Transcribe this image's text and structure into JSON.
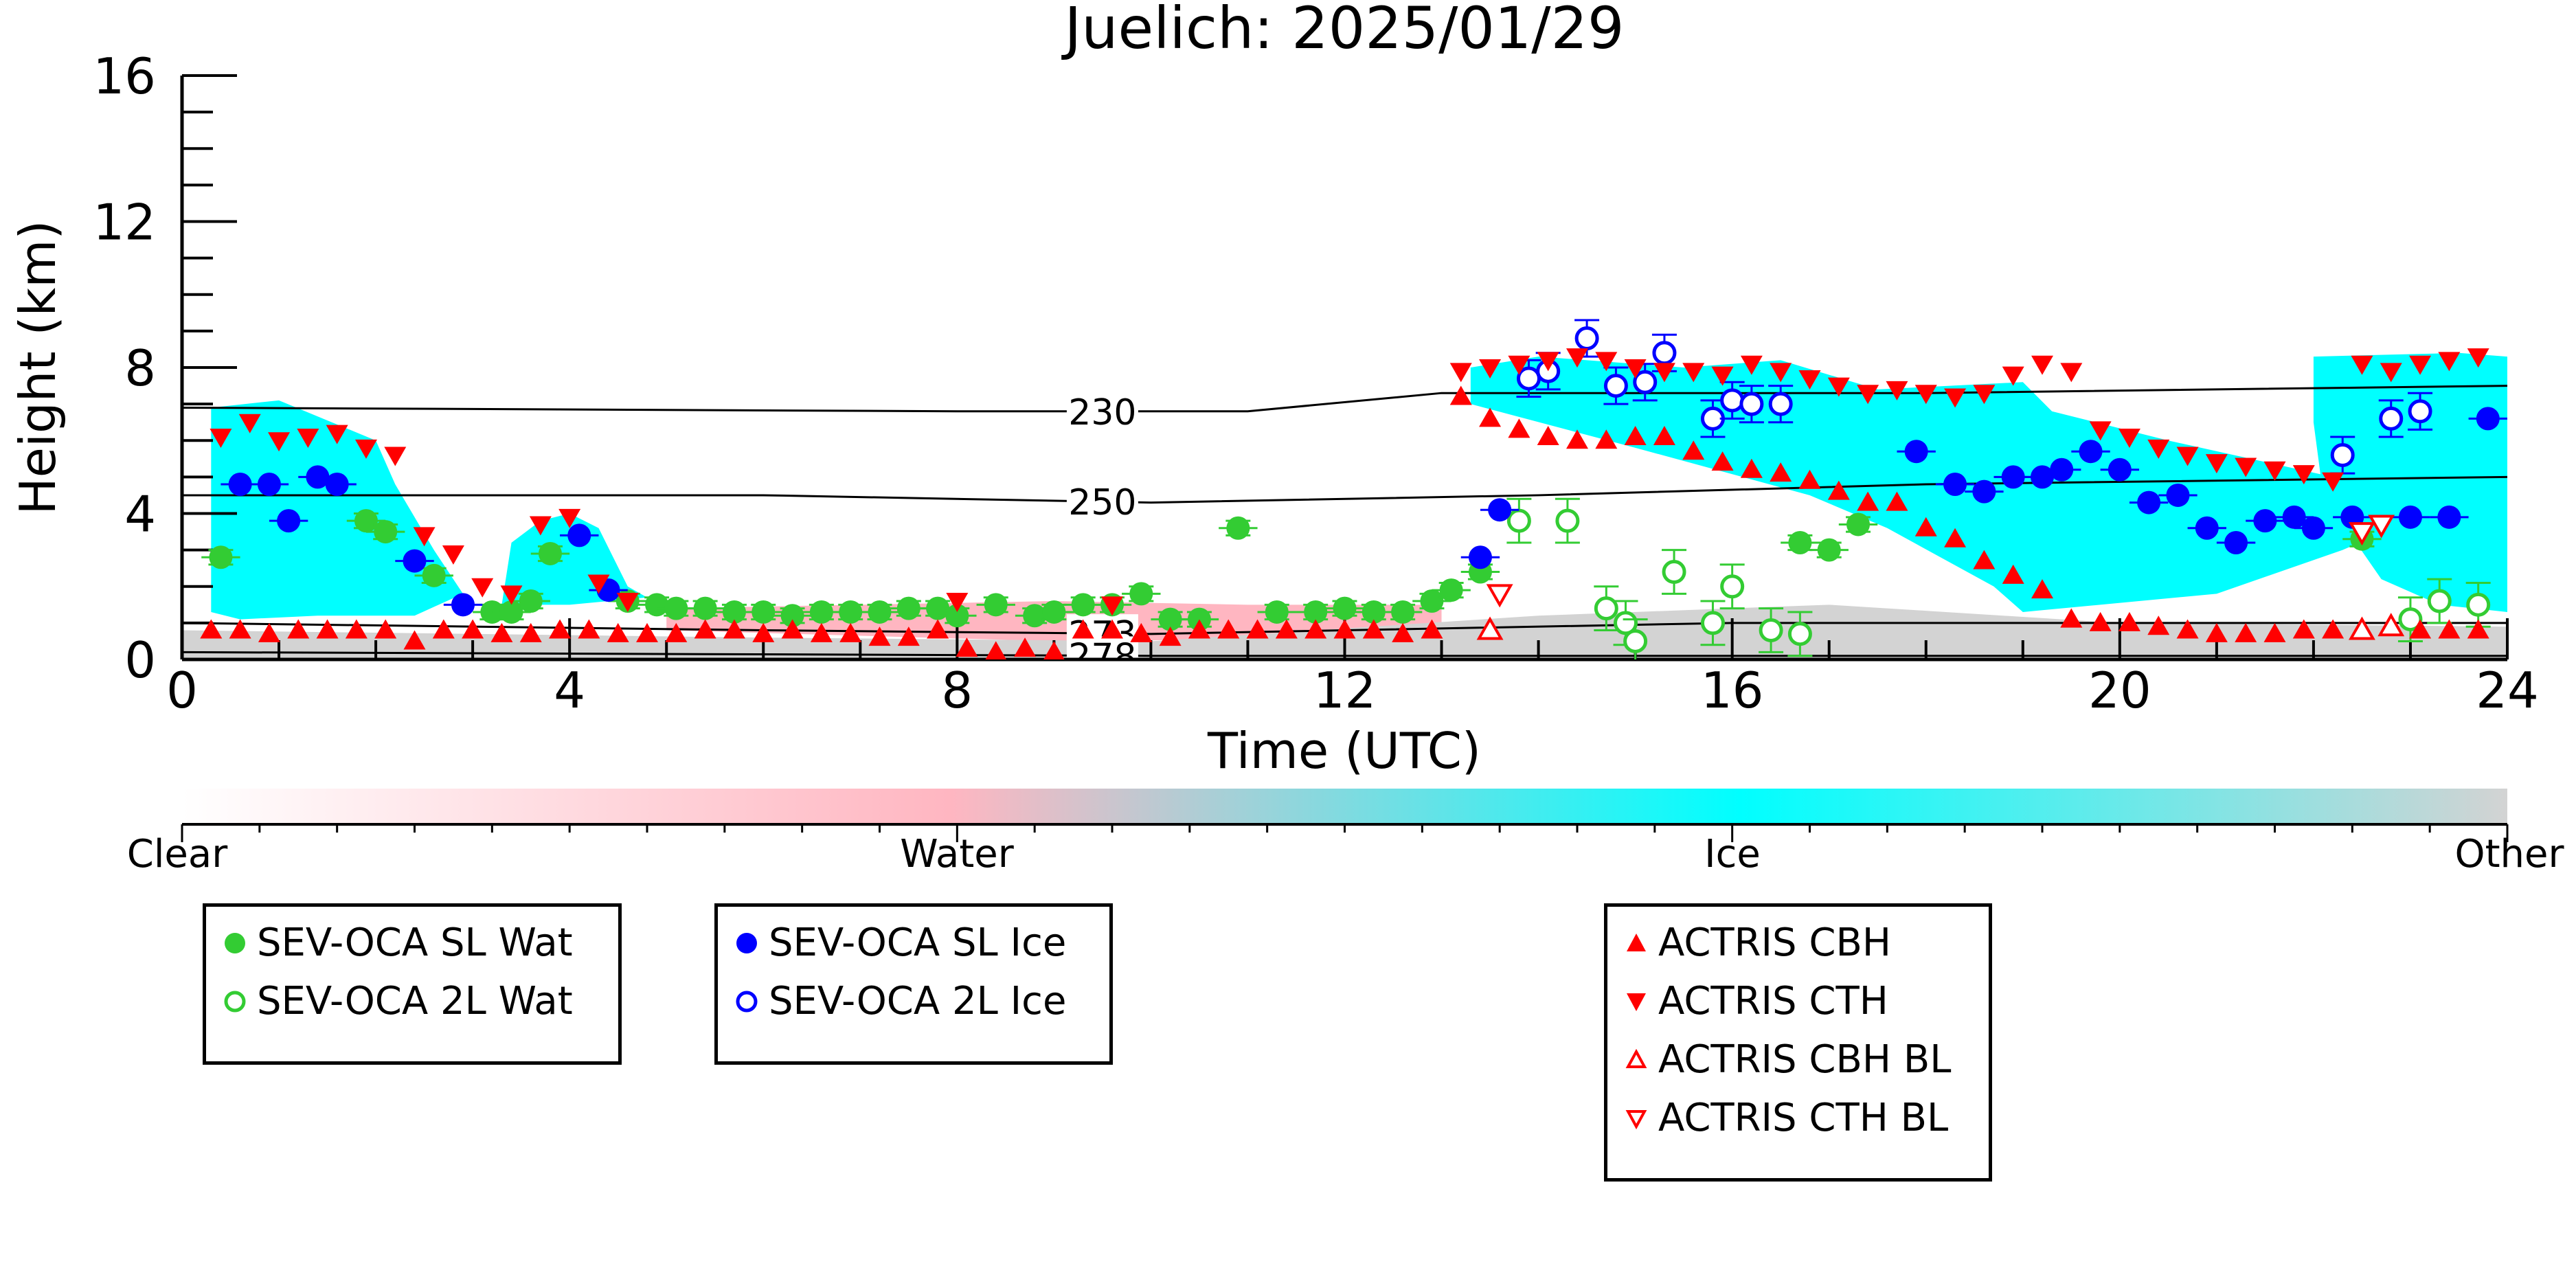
{
  "chart_data": {
    "type": "scatter",
    "title": "Juelich: 2025/01/29",
    "xlabel": "Time (UTC)",
    "ylabel": "Height (km)",
    "xlim": [
      0,
      24
    ],
    "ylim": [
      0,
      16
    ],
    "xticks": [
      0,
      4,
      8,
      12,
      16,
      20,
      24
    ],
    "yticks": [
      0,
      4,
      8,
      12,
      16
    ],
    "colorbar": {
      "labels": [
        "Clear",
        "Water",
        "Ice",
        "Other"
      ],
      "colors": [
        "#ffffff",
        "#ffb6c1",
        "#00ffff",
        "#d3d3d3"
      ]
    },
    "isotherms": [
      {
        "label": "230",
        "label_x": 9.5,
        "points": [
          [
            0,
            6.9
          ],
          [
            8,
            6.8
          ],
          [
            11,
            6.8
          ],
          [
            13,
            7.3
          ],
          [
            18,
            7.3
          ],
          [
            24,
            7.5
          ]
        ]
      },
      {
        "label": "250",
        "label_x": 9.5,
        "points": [
          [
            0,
            4.5
          ],
          [
            6,
            4.5
          ],
          [
            10,
            4.3
          ],
          [
            14,
            4.5
          ],
          [
            18,
            4.8
          ],
          [
            24,
            5.0
          ]
        ]
      },
      {
        "label": "273",
        "label_x": 9.5,
        "points": [
          [
            0,
            1.0
          ],
          [
            6,
            0.8
          ],
          [
            10,
            0.7
          ],
          [
            16,
            1.0
          ],
          [
            24,
            1.0
          ]
        ]
      },
      {
        "label": "278",
        "label_x": 9.5,
        "points": [
          [
            0,
            0.2
          ],
          [
            10,
            0.1
          ],
          [
            24,
            0.1
          ]
        ]
      }
    ],
    "cloud_regions": [
      {
        "class": "Ice",
        "points": [
          [
            0.3,
            6.9
          ],
          [
            1,
            7.1
          ],
          [
            2,
            6.0
          ],
          [
            2.2,
            4.8
          ],
          [
            2.6,
            3.0
          ],
          [
            2.9,
            1.8
          ],
          [
            2.4,
            1.2
          ],
          [
            1.4,
            1.2
          ],
          [
            0.6,
            1.1
          ],
          [
            0.3,
            1.3
          ]
        ]
      },
      {
        "class": "Ice",
        "points": [
          [
            3.4,
            3.2
          ],
          [
            3.7,
            3.8
          ],
          [
            4.0,
            4.0
          ],
          [
            4.3,
            3.6
          ],
          [
            4.6,
            2.0
          ],
          [
            4.8,
            1.7
          ],
          [
            4.0,
            1.5
          ],
          [
            3.3,
            1.5
          ]
        ]
      },
      {
        "class": "Ice",
        "points": [
          [
            13.3,
            8.0
          ],
          [
            14.0,
            8.3
          ],
          [
            15.5,
            8.0
          ],
          [
            16.5,
            8.2
          ],
          [
            17.5,
            7.4
          ],
          [
            19,
            7.6
          ],
          [
            19.3,
            6.8
          ],
          [
            20.5,
            6.0
          ],
          [
            22.2,
            5.0
          ],
          [
            22.5,
            4.0
          ],
          [
            23,
            3.8
          ],
          [
            22.3,
            3.0
          ],
          [
            21,
            1.8
          ],
          [
            19,
            1.3
          ],
          [
            18.7,
            2.0
          ],
          [
            17.6,
            3.6
          ],
          [
            16.8,
            4.5
          ],
          [
            15,
            5.8
          ],
          [
            13.3,
            7.0
          ]
        ]
      },
      {
        "class": "Ice",
        "points": [
          [
            22.0,
            8.3
          ],
          [
            23.5,
            8.4
          ],
          [
            24,
            8.3
          ],
          [
            24,
            1.3
          ],
          [
            23.3,
            1.5
          ],
          [
            22.7,
            2.2
          ],
          [
            22.1,
            4.5
          ],
          [
            22.0,
            6.5
          ]
        ]
      },
      {
        "class": "Water",
        "points": [
          [
            5,
            1.4
          ],
          [
            7,
            1.5
          ],
          [
            9,
            1.6
          ],
          [
            11,
            1.5
          ],
          [
            13,
            1.5
          ],
          [
            13,
            0.6
          ],
          [
            9,
            0.5
          ],
          [
            5,
            0.8
          ]
        ]
      },
      {
        "class": "Other",
        "points": [
          [
            0,
            0.8
          ],
          [
            6,
            0.6
          ],
          [
            10,
            0.5
          ],
          [
            14,
            1.2
          ],
          [
            17,
            1.5
          ],
          [
            20,
            1.0
          ],
          [
            24,
            0.9
          ],
          [
            24,
            0
          ],
          [
            0,
            0
          ]
        ]
      }
    ],
    "series": [
      {
        "name": "SEV-OCA SL Wat",
        "marker": "circle-filled",
        "color": "#33cc33",
        "x": [
          0.4,
          1.9,
          2.1,
          2.6,
          3.2,
          3.4,
          3.6,
          3.8,
          4.6,
          4.9,
          5.1,
          5.4,
          5.7,
          6.0,
          6.3,
          6.6,
          6.9,
          7.2,
          7.5,
          7.8,
          8.0,
          8.4,
          8.8,
          9.0,
          9.3,
          9.6,
          9.9,
          10.2,
          10.5,
          10.9,
          11.3,
          11.7,
          12.0,
          12.3,
          12.6,
          12.9,
          13.1,
          13.4,
          16.7,
          17.0,
          17.3,
          22.5
        ],
        "y": [
          2.8,
          3.8,
          3.5,
          2.3,
          1.3,
          1.3,
          1.6,
          2.9,
          1.6,
          1.5,
          1.4,
          1.4,
          1.3,
          1.3,
          1.2,
          1.3,
          1.3,
          1.3,
          1.4,
          1.4,
          1.2,
          1.5,
          1.2,
          1.3,
          1.5,
          1.5,
          1.8,
          1.1,
          1.1,
          3.6,
          1.3,
          1.3,
          1.4,
          1.3,
          1.3,
          1.6,
          1.9,
          2.4,
          3.2,
          3.0,
          3.7,
          3.3
        ],
        "xerr": 0.2,
        "yerr": 0.2
      },
      {
        "name": "SEV-OCA 2L Wat",
        "marker": "circle-open",
        "color": "#33cc33",
        "x": [
          13.8,
          14.3,
          14.7,
          14.9,
          15.0,
          15.4,
          15.8,
          16.0,
          16.4,
          16.7,
          23.0,
          23.3,
          23.7
        ],
        "y": [
          3.8,
          3.8,
          1.4,
          1.0,
          0.5,
          2.4,
          1.0,
          2.0,
          0.8,
          0.7,
          1.1,
          1.6,
          1.5
        ],
        "yerr": 0.6
      },
      {
        "name": "SEV-OCA SL Ice",
        "marker": "circle-filled",
        "color": "#0000ff",
        "x": [
          0.6,
          0.9,
          1.1,
          1.4,
          1.6,
          2.4,
          2.9,
          4.1,
          4.4,
          13.4,
          13.6,
          17.9,
          18.3,
          18.6,
          18.9,
          19.2,
          19.4,
          19.7,
          20.0,
          20.3,
          20.6,
          20.9,
          21.2,
          21.5,
          21.8,
          22.0,
          22.4,
          23.0,
          23.4,
          23.8
        ],
        "y": [
          4.8,
          4.8,
          3.8,
          5.0,
          4.8,
          2.7,
          1.5,
          3.4,
          1.9,
          2.8,
          4.1,
          5.7,
          4.8,
          4.6,
          5.0,
          5.0,
          5.2,
          5.7,
          5.2,
          4.3,
          4.5,
          3.6,
          3.2,
          3.8,
          3.9,
          3.6,
          3.9,
          3.9,
          3.9,
          6.6
        ],
        "xerr": 0.2
      },
      {
        "name": "SEV-OCA 2L Ice",
        "marker": "circle-open",
        "color": "#0000ff",
        "x": [
          13.9,
          14.1,
          14.5,
          14.8,
          15.1,
          15.3,
          15.8,
          16.0,
          16.2,
          16.5,
          22.3,
          22.8,
          23.1
        ],
        "y": [
          7.7,
          7.9,
          8.8,
          7.5,
          7.6,
          8.4,
          6.6,
          7.1,
          7.0,
          7.0,
          5.6,
          6.6,
          6.8
        ],
        "yerr": 0.5
      },
      {
        "name": "ACTRIS CBH",
        "marker": "triangle-up-filled",
        "color": "#ff0000",
        "x": [
          0.3,
          0.6,
          0.9,
          1.2,
          1.5,
          1.8,
          2.1,
          2.4,
          2.7,
          3.0,
          3.3,
          3.6,
          3.9,
          4.2,
          4.5,
          4.8,
          5.1,
          5.4,
          5.7,
          6.0,
          6.3,
          6.6,
          6.9,
          7.2,
          7.5,
          7.8,
          8.1,
          8.4,
          8.7,
          9.0,
          9.3,
          9.6,
          9.9,
          10.2,
          10.5,
          10.8,
          11.1,
          11.4,
          11.7,
          12.0,
          12.3,
          12.6,
          12.9,
          13.2,
          13.5,
          13.8,
          14.1,
          14.4,
          14.7,
          15.0,
          15.3,
          15.6,
          15.9,
          16.2,
          16.5,
          16.8,
          17.1,
          17.4,
          17.7,
          18.0,
          18.3,
          18.6,
          18.9,
          19.2,
          19.5,
          19.8,
          20.1,
          20.4,
          20.7,
          21.0,
          21.3,
          21.6,
          21.9,
          22.2,
          22.5,
          22.8,
          23.1,
          23.4,
          23.7
        ],
        "y": [
          0.8,
          0.8,
          0.7,
          0.8,
          0.8,
          0.8,
          0.8,
          0.5,
          0.8,
          0.8,
          0.7,
          0.7,
          0.8,
          0.8,
          0.7,
          0.7,
          0.7,
          0.8,
          0.8,
          0.7,
          0.8,
          0.7,
          0.7,
          0.6,
          0.6,
          0.8,
          0.3,
          0.2,
          0.3,
          0.2,
          0.8,
          0.8,
          0.7,
          0.6,
          0.8,
          0.8,
          0.8,
          0.8,
          0.8,
          0.8,
          0.8,
          0.7,
          0.8,
          7.2,
          6.6,
          6.3,
          6.1,
          6.0,
          6.0,
          6.1,
          6.1,
          5.7,
          5.4,
          5.2,
          5.1,
          4.9,
          4.6,
          4.3,
          4.3,
          3.6,
          3.3,
          2.7,
          2.3,
          1.9,
          1.1,
          1.0,
          1.0,
          0.9,
          0.8,
          0.7,
          0.7,
          0.7,
          0.8,
          0.8,
          0.8,
          0.9,
          0.8,
          0.8,
          0.8
        ]
      },
      {
        "name": "ACTRIS CTH",
        "marker": "triangle-down-filled",
        "color": "#ff0000",
        "x": [
          0.4,
          0.7,
          1.0,
          1.3,
          1.6,
          1.9,
          2.2,
          2.5,
          2.8,
          3.1,
          3.4,
          3.7,
          4.0,
          4.3,
          4.6,
          8.0,
          9.6,
          13.2,
          13.5,
          13.8,
          14.1,
          14.4,
          14.7,
          15.0,
          15.3,
          15.6,
          15.9,
          16.2,
          16.5,
          16.8,
          17.1,
          17.4,
          17.7,
          18.0,
          18.3,
          18.6,
          18.9,
          19.2,
          19.5,
          19.8,
          20.1,
          20.4,
          20.7,
          21.0,
          21.3,
          21.6,
          21.9,
          22.2,
          22.5,
          22.8,
          23.1,
          23.4,
          23.7
        ],
        "y": [
          6.1,
          6.5,
          6.0,
          6.1,
          6.2,
          5.8,
          5.6,
          3.4,
          2.9,
          2.0,
          1.8,
          3.7,
          3.9,
          2.1,
          1.6,
          1.6,
          1.5,
          7.9,
          8.0,
          8.1,
          8.2,
          8.3,
          8.2,
          8.0,
          7.9,
          7.9,
          7.8,
          8.1,
          7.9,
          7.7,
          7.5,
          7.3,
          7.4,
          7.3,
          7.2,
          7.3,
          7.8,
          8.1,
          7.9,
          6.3,
          6.1,
          5.8,
          5.6,
          5.4,
          5.3,
          5.2,
          5.1,
          4.9,
          8.1,
          7.9,
          8.1,
          8.2,
          8.3
        ]
      },
      {
        "name": "ACTRIS CBH BL",
        "marker": "triangle-up-open",
        "color": "#ff0000",
        "x": [
          13.5,
          22.5,
          22.8
        ],
        "y": [
          0.8,
          0.8,
          0.9
        ]
      },
      {
        "name": "ACTRIS CTH BL",
        "marker": "triangle-down-open",
        "color": "#ff0000",
        "x": [
          13.6,
          22.5,
          22.7
        ],
        "y": [
          1.8,
          3.5,
          3.7
        ]
      }
    ]
  }
}
